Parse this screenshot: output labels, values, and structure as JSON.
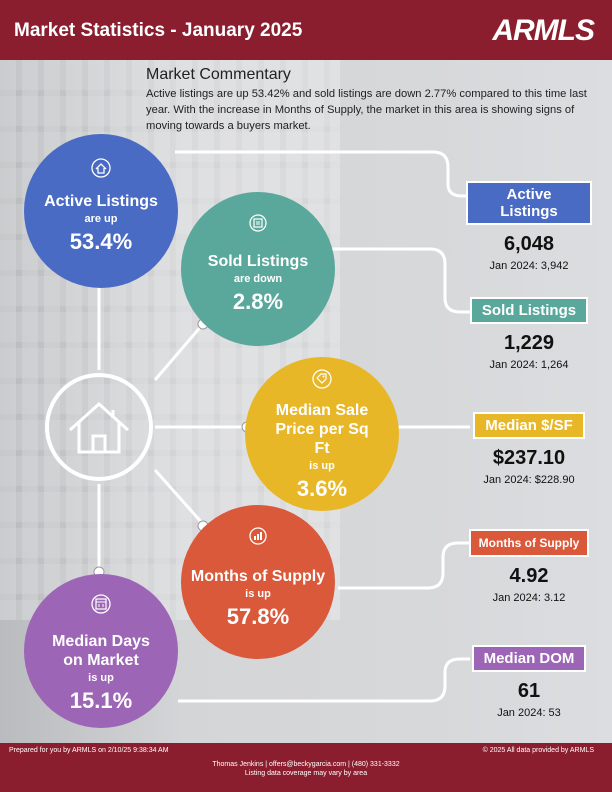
{
  "header": {
    "title": "Market Statistics - January 2025",
    "logo": "ARMLS"
  },
  "commentary": {
    "heading": "Market Commentary",
    "text": "Active listings are up 53.42% and sold listings are down 2.77% compared to this time last year. With the increase in Months of Supply, the market in this area is showing signs of moving towards a buyers market."
  },
  "circles": {
    "active": {
      "title": "Active Listings",
      "sub": "are up",
      "pct": "53.4%",
      "color": "#4a6bc4",
      "icon": "house-icon"
    },
    "sold": {
      "title": "Sold Listings",
      "sub": "are down",
      "pct": "2.8%",
      "color": "#5aa79b",
      "icon": "document-icon"
    },
    "median": {
      "title": "Median Sale Price per Sq Ft",
      "sub": "is up",
      "pct": "3.6%",
      "color": "#e8b728",
      "icon": "price-tag-icon"
    },
    "supply": {
      "title": "Months of Supply",
      "sub": "is up",
      "pct": "57.8%",
      "color": "#d9593a",
      "icon": "bar-chart-icon"
    },
    "dom": {
      "title": "Median Days on Market",
      "sub": "is up",
      "pct": "15.1%",
      "color": "#9d65b6",
      "icon": "calendar-icon"
    }
  },
  "stats": {
    "active": {
      "label": "Active Listings",
      "value": "6,048",
      "prev": "Jan 2024: 3,942",
      "color": "#4a6bc4"
    },
    "sold": {
      "label": "Sold Listings",
      "value": "1,229",
      "prev": "Jan 2024: 1,264",
      "color": "#5aa79b"
    },
    "median": {
      "label": "Median $/SF",
      "value": "$237.10",
      "prev": "Jan 2024: $228.90",
      "color": "#e8b728"
    },
    "supply": {
      "label": "Months of Supply",
      "value": "4.92",
      "prev": "Jan 2024: 3.12",
      "color": "#d9593a"
    },
    "dom": {
      "label": "Median DOM",
      "value": "61",
      "prev": "Jan 2024: 53",
      "color": "#9d65b6"
    }
  },
  "footer": {
    "prepared": "Prepared for you by ARMLS on 2/10/25 9:38:34 AM",
    "copyright": "© 2025 All data provided by ARMLS",
    "contact": "Thomas Jenkins | offers@beckygarcia.com | (480) 331-3332",
    "coverage": "Listing data coverage may vary by area"
  }
}
